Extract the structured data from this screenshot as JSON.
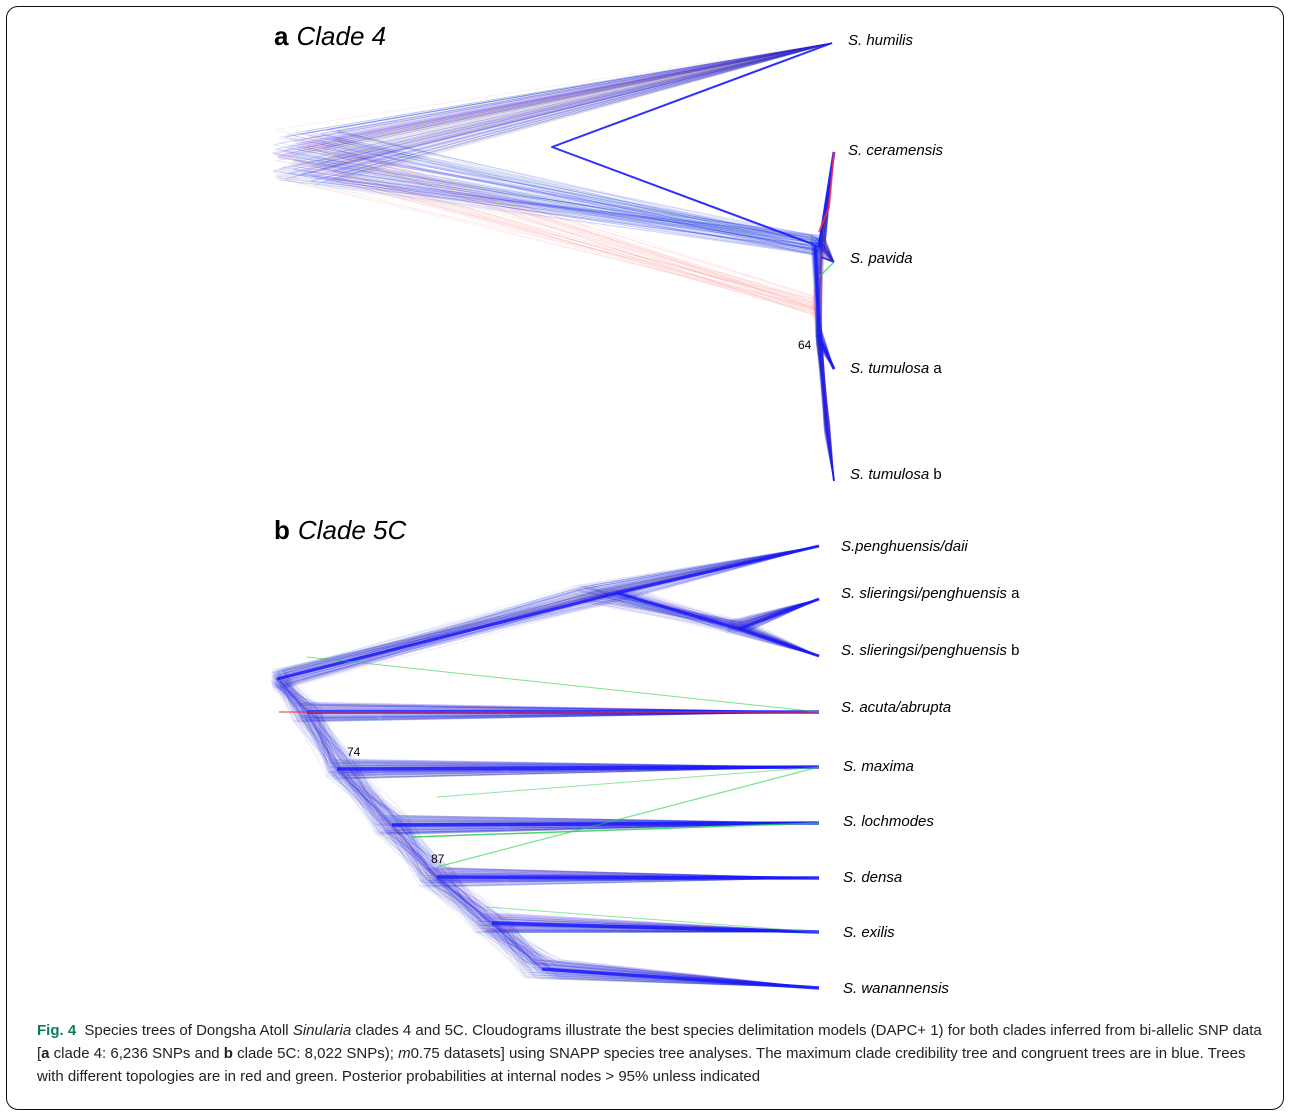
{
  "panel_a": {
    "letter": "a",
    "clade": "Clade 4",
    "taxa": [
      {
        "name": "S. humilis",
        "suffix": ""
      },
      {
        "name": "S. ceramensis",
        "suffix": ""
      },
      {
        "name": "S. pavida",
        "suffix": ""
      },
      {
        "name": "S. tumulosa",
        "suffix": "a"
      },
      {
        "name": "S. tumulosa",
        "suffix": "b"
      }
    ],
    "support": [
      "64"
    ]
  },
  "panel_b": {
    "letter": "b",
    "clade": "Clade 5C",
    "taxa": [
      {
        "name": "S.penghuensis/daii",
        "suffix": ""
      },
      {
        "name": "S. slieringsi/penghuensis",
        "suffix": "a"
      },
      {
        "name": "S. slieringsi/penghuensis",
        "suffix": "b"
      },
      {
        "name": "S. acuta/abrupta",
        "suffix": ""
      },
      {
        "name": "S. maxima",
        "suffix": ""
      },
      {
        "name": "S. lochmodes",
        "suffix": ""
      },
      {
        "name": "S. densa",
        "suffix": ""
      },
      {
        "name": "S. exilis",
        "suffix": ""
      },
      {
        "name": "S. wanannensis",
        "suffix": ""
      }
    ],
    "support": [
      "74",
      "87"
    ]
  },
  "colors": {
    "consensus": "#1a1aff",
    "alt_topology_1": "#ff3030",
    "alt_topology_2": "#22cc44",
    "figure_label": "#0b7a5e"
  },
  "caption": {
    "label": "Fig. 4",
    "part1": "Species trees of Dongsha Atoll ",
    "genus": "Sinularia",
    "part2": " clades 4 and 5C. Cloudograms illustrate the best species delimitation models (DAPC+ 1) for both clades inferred from bi-allelic SNP data [",
    "a": "a",
    "part3": " clade 4: 6,236 SNPs and ",
    "b": "b",
    "part4": " clade 5C: 8,022 SNPs); ",
    "m": "m",
    "part5": "0.75 datasets] using SNAPP species tree analyses. The maximum clade credibility tree and congruent trees are in blue. Trees with different topologies are in red and green. Posterior probabilities at internal nodes > 95% unless indicated"
  }
}
